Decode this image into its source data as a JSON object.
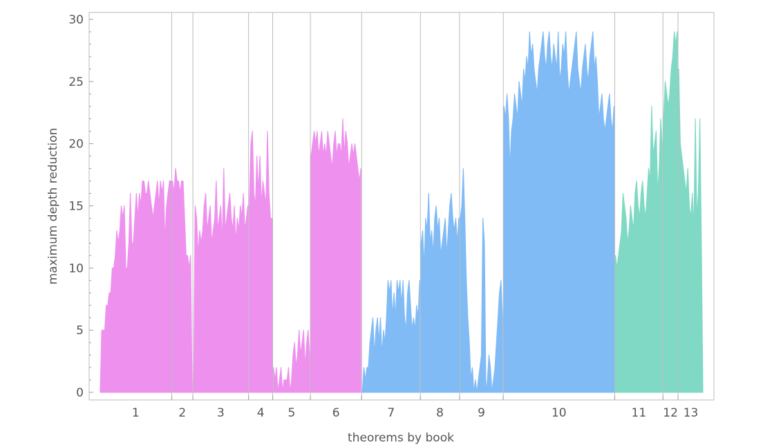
{
  "chart_data": {
    "type": "area",
    "title": "",
    "xlabel": "theorems by book",
    "ylabel": "maximum depth reduction",
    "ylim": [
      0,
      30
    ],
    "yticks": [
      0,
      5,
      10,
      15,
      20,
      25,
      30
    ],
    "grid": "vertical dividers between books",
    "legend": "none",
    "books": [
      "1",
      "2",
      "3",
      "4",
      "5",
      "6",
      "7",
      "8",
      "9",
      "10",
      "11",
      "12",
      "13"
    ],
    "group_colors": {
      "plane_geometry": "#ee90ee",
      "number_theory": "#80bbf5",
      "solid_geometry": "#7fd9c4"
    },
    "series": [
      {
        "book": "1",
        "color": "#ee90ee",
        "values": [
          0,
          5,
          5,
          5,
          7,
          7,
          8,
          8,
          10,
          10,
          11,
          13,
          12,
          13,
          15,
          14,
          15,
          10,
          10,
          12,
          16,
          12,
          12,
          14,
          16,
          14,
          16,
          15,
          17,
          17,
          16,
          16,
          17,
          16,
          15,
          14,
          15,
          16,
          17,
          15,
          17,
          16,
          17,
          12,
          15,
          16,
          17,
          17
        ]
      },
      {
        "book": "2",
        "color": "#ee90ee",
        "values": [
          17,
          16,
          18,
          17,
          17,
          16,
          17,
          17,
          14,
          11,
          11,
          10,
          11,
          0
        ]
      },
      {
        "book": "3",
        "color": "#ee90ee",
        "values": [
          0,
          15,
          14,
          11,
          13,
          12,
          13,
          15,
          16,
          13,
          14,
          15,
          12,
          13,
          14,
          17,
          13,
          14,
          15,
          12,
          18,
          13,
          14,
          15,
          16,
          14,
          13,
          15,
          12,
          14,
          13,
          15,
          14,
          16,
          13,
          14,
          15
        ]
      },
      {
        "book": "4",
        "color": "#ee90ee",
        "values": [
          15,
          20,
          21,
          16,
          15,
          19,
          16,
          19,
          15,
          17,
          16,
          15,
          21,
          16,
          14,
          14
        ]
      },
      {
        "book": "5",
        "color": "#ee90ee",
        "values": [
          2,
          1,
          2,
          0,
          1,
          2,
          0,
          1,
          1,
          1,
          2,
          0,
          1,
          3,
          4,
          2,
          3,
          5,
          3,
          4,
          5,
          2,
          4,
          5,
          3
        ]
      },
      {
        "book": "6",
        "color": "#ee90ee",
        "values": [
          19,
          20,
          21,
          20,
          21,
          19,
          20,
          21,
          19,
          20,
          19,
          21,
          20,
          19,
          18,
          20,
          21,
          19,
          20,
          20,
          19,
          22,
          19,
          21,
          20,
          18,
          19,
          20,
          19,
          20,
          19,
          18,
          17,
          18
        ]
      },
      {
        "book": "7",
        "color": "#80bbf5",
        "values": [
          0,
          2,
          1,
          2,
          2,
          4,
          5,
          6,
          3,
          5,
          6,
          4,
          6,
          3,
          5,
          4,
          6,
          9,
          8,
          9,
          6,
          8,
          6,
          9,
          8,
          9,
          7,
          9,
          6,
          5,
          8,
          9,
          7,
          5,
          6,
          5,
          7,
          6,
          9
        ]
      },
      {
        "book": "8",
        "color": "#80bbf5",
        "values": [
          12,
          13,
          10,
          14,
          13,
          16,
          12,
          13,
          11,
          14,
          15,
          13,
          14,
          11,
          12,
          13,
          14,
          11,
          13,
          15,
          16,
          14,
          13,
          14,
          12,
          14
        ]
      },
      {
        "book": "9",
        "color": "#80bbf5",
        "values": [
          14,
          15,
          18,
          14,
          9,
          6,
          4,
          1,
          2,
          0,
          1,
          0,
          1,
          2,
          3,
          14,
          12,
          0,
          1,
          3,
          2,
          0,
          1,
          2,
          4,
          6,
          8,
          9,
          6
        ]
      },
      {
        "book": "10",
        "color": "#80bbf5",
        "values": [
          23,
          22,
          24,
          22,
          18,
          21,
          22,
          24,
          23,
          22,
          25,
          24,
          23,
          26,
          25,
          27,
          26,
          29,
          27,
          28,
          26,
          25,
          24,
          26,
          27,
          28,
          29,
          27,
          26,
          28,
          29,
          27,
          26,
          28,
          27,
          26,
          29,
          25,
          26,
          28,
          27,
          29,
          26,
          24,
          25,
          26,
          27,
          28,
          29,
          26,
          25,
          24,
          26,
          27,
          28,
          26,
          25,
          27,
          28,
          29,
          26,
          27,
          25,
          22,
          23,
          24,
          22,
          21,
          22,
          23,
          24,
          22,
          21,
          23
        ]
      },
      {
        "book": "11",
        "color": "#7fd9c4",
        "values": [
          11,
          10,
          11,
          12,
          13,
          16,
          15,
          14,
          12,
          13,
          15,
          14,
          13,
          16,
          17,
          15,
          14,
          16,
          17,
          15,
          14,
          16,
          18,
          17,
          23,
          19,
          20,
          21,
          16,
          18,
          22,
          20
        ]
      },
      {
        "book": "12",
        "color": "#7fd9c4",
        "values": [
          22,
          25,
          24,
          23,
          24,
          26,
          27,
          29,
          28,
          29
        ]
      },
      {
        "book": "13",
        "color": "#7fd9c4",
        "values": [
          26,
          20,
          19,
          18,
          17,
          16,
          18,
          15,
          14,
          16,
          13,
          22,
          14,
          16,
          22,
          12,
          0
        ]
      }
    ]
  }
}
